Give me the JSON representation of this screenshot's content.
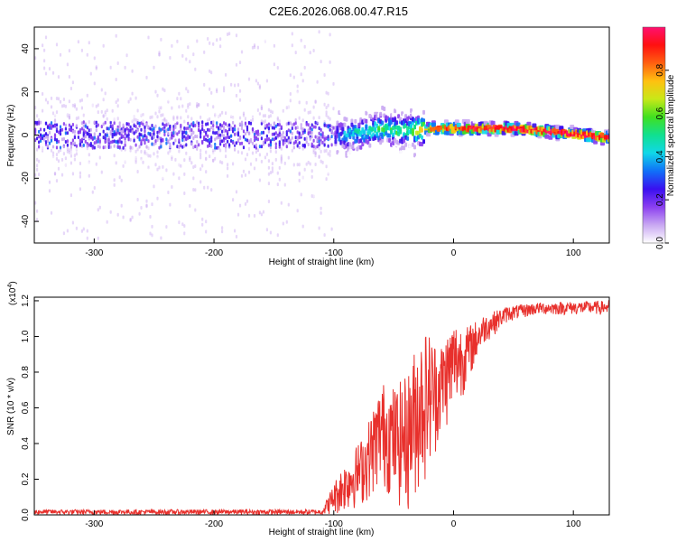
{
  "title": "C2E6.2026.068.00.47.R15",
  "chart_data": [
    {
      "type": "heatmap",
      "xlabel": "Height of straight line (km)",
      "ylabel": "Frequency (Hz)",
      "xlim": [
        -350,
        130
      ],
      "ylim": [
        -50,
        50
      ],
      "xticks": [
        -300,
        -200,
        -100,
        0,
        100
      ],
      "yticks": [
        -40,
        -20,
        0,
        20,
        40
      ],
      "xtick_labels": [
        "-300",
        "-200",
        "-100",
        "0",
        "100"
      ],
      "ytick_labels": [
        "-40",
        "-20",
        "0",
        "20",
        "40"
      ],
      "ridge": [
        {
          "x": -350,
          "freq": 0,
          "amp": 0.2
        },
        {
          "x": -100,
          "freq": 0,
          "amp": 0.25
        },
        {
          "x": -90,
          "freq": 0,
          "amp": 0.4
        },
        {
          "x": -60,
          "freq": 3,
          "amp": 0.5
        },
        {
          "x": -40,
          "freq": 2,
          "amp": 0.5
        },
        {
          "x": -20,
          "freq": 3,
          "amp": 0.8
        },
        {
          "x": 0,
          "freq": 3,
          "amp": 0.9
        },
        {
          "x": 50,
          "freq": 3,
          "amp": 0.95
        },
        {
          "x": 90,
          "freq": 1,
          "amp": 0.95
        },
        {
          "x": 125,
          "freq": -1,
          "amp": 0.95
        }
      ]
    },
    {
      "type": "line",
      "xlabel": "Height of straight line (km)",
      "ylabel": "SNR (10 * v/v)",
      "multiplier_label": "(x10",
      "multiplier_exp": "4",
      "multiplier_close": ")",
      "xlim": [
        -350,
        130
      ],
      "ylim": [
        0,
        1.22
      ],
      "xticks": [
        -300,
        -200,
        -100,
        0,
        100
      ],
      "yticks": [
        0.0,
        0.2,
        0.4,
        0.6,
        0.8,
        1.0,
        1.2
      ],
      "xtick_labels": [
        "-300",
        "-200",
        "-100",
        "0",
        "100"
      ],
      "ytick_labels": [
        "0.0",
        "0.2",
        "0.4",
        "0.6",
        "0.8",
        "1.0",
        "1.2"
      ],
      "color": "#e8302c",
      "envelope": [
        {
          "x": -350,
          "low": 0.0,
          "high": 0.03
        },
        {
          "x": -110,
          "low": 0.0,
          "high": 0.03
        },
        {
          "x": -95,
          "low": 0.0,
          "high": 0.25
        },
        {
          "x": -75,
          "low": 0.05,
          "high": 0.45
        },
        {
          "x": -60,
          "low": 0.15,
          "high": 0.75
        },
        {
          "x": -48,
          "low": 0.05,
          "high": 0.72
        },
        {
          "x": -38,
          "low": 0.0,
          "high": 0.8
        },
        {
          "x": -30,
          "low": 0.1,
          "high": 1.0
        },
        {
          "x": -22,
          "low": 0.2,
          "high": 1.05
        },
        {
          "x": -12,
          "low": 0.4,
          "high": 0.95
        },
        {
          "x": 0,
          "low": 0.55,
          "high": 1.1
        },
        {
          "x": 10,
          "low": 0.7,
          "high": 1.05
        },
        {
          "x": 25,
          "low": 0.95,
          "high": 1.12
        },
        {
          "x": 45,
          "low": 1.08,
          "high": 1.17
        },
        {
          "x": 70,
          "low": 1.12,
          "high": 1.19
        },
        {
          "x": 130,
          "low": 1.12,
          "high": 1.2
        }
      ]
    }
  ],
  "colorbar": {
    "label": "Normalized spectral amplitude",
    "ticks": [
      0.0,
      0.2,
      0.4,
      0.6,
      0.8
    ],
    "tick_labels": [
      "0.0",
      "0.2",
      "0.4",
      "0.6",
      "0.8"
    ],
    "colors": [
      "#ffffff",
      "#c9a8f2",
      "#8b3ff0",
      "#3a10f0",
      "#1070f8",
      "#10d8e8",
      "#10e090",
      "#40e020",
      "#c8e818",
      "#ffc010",
      "#ff6010",
      "#ff1010",
      "#ff1070"
    ]
  }
}
